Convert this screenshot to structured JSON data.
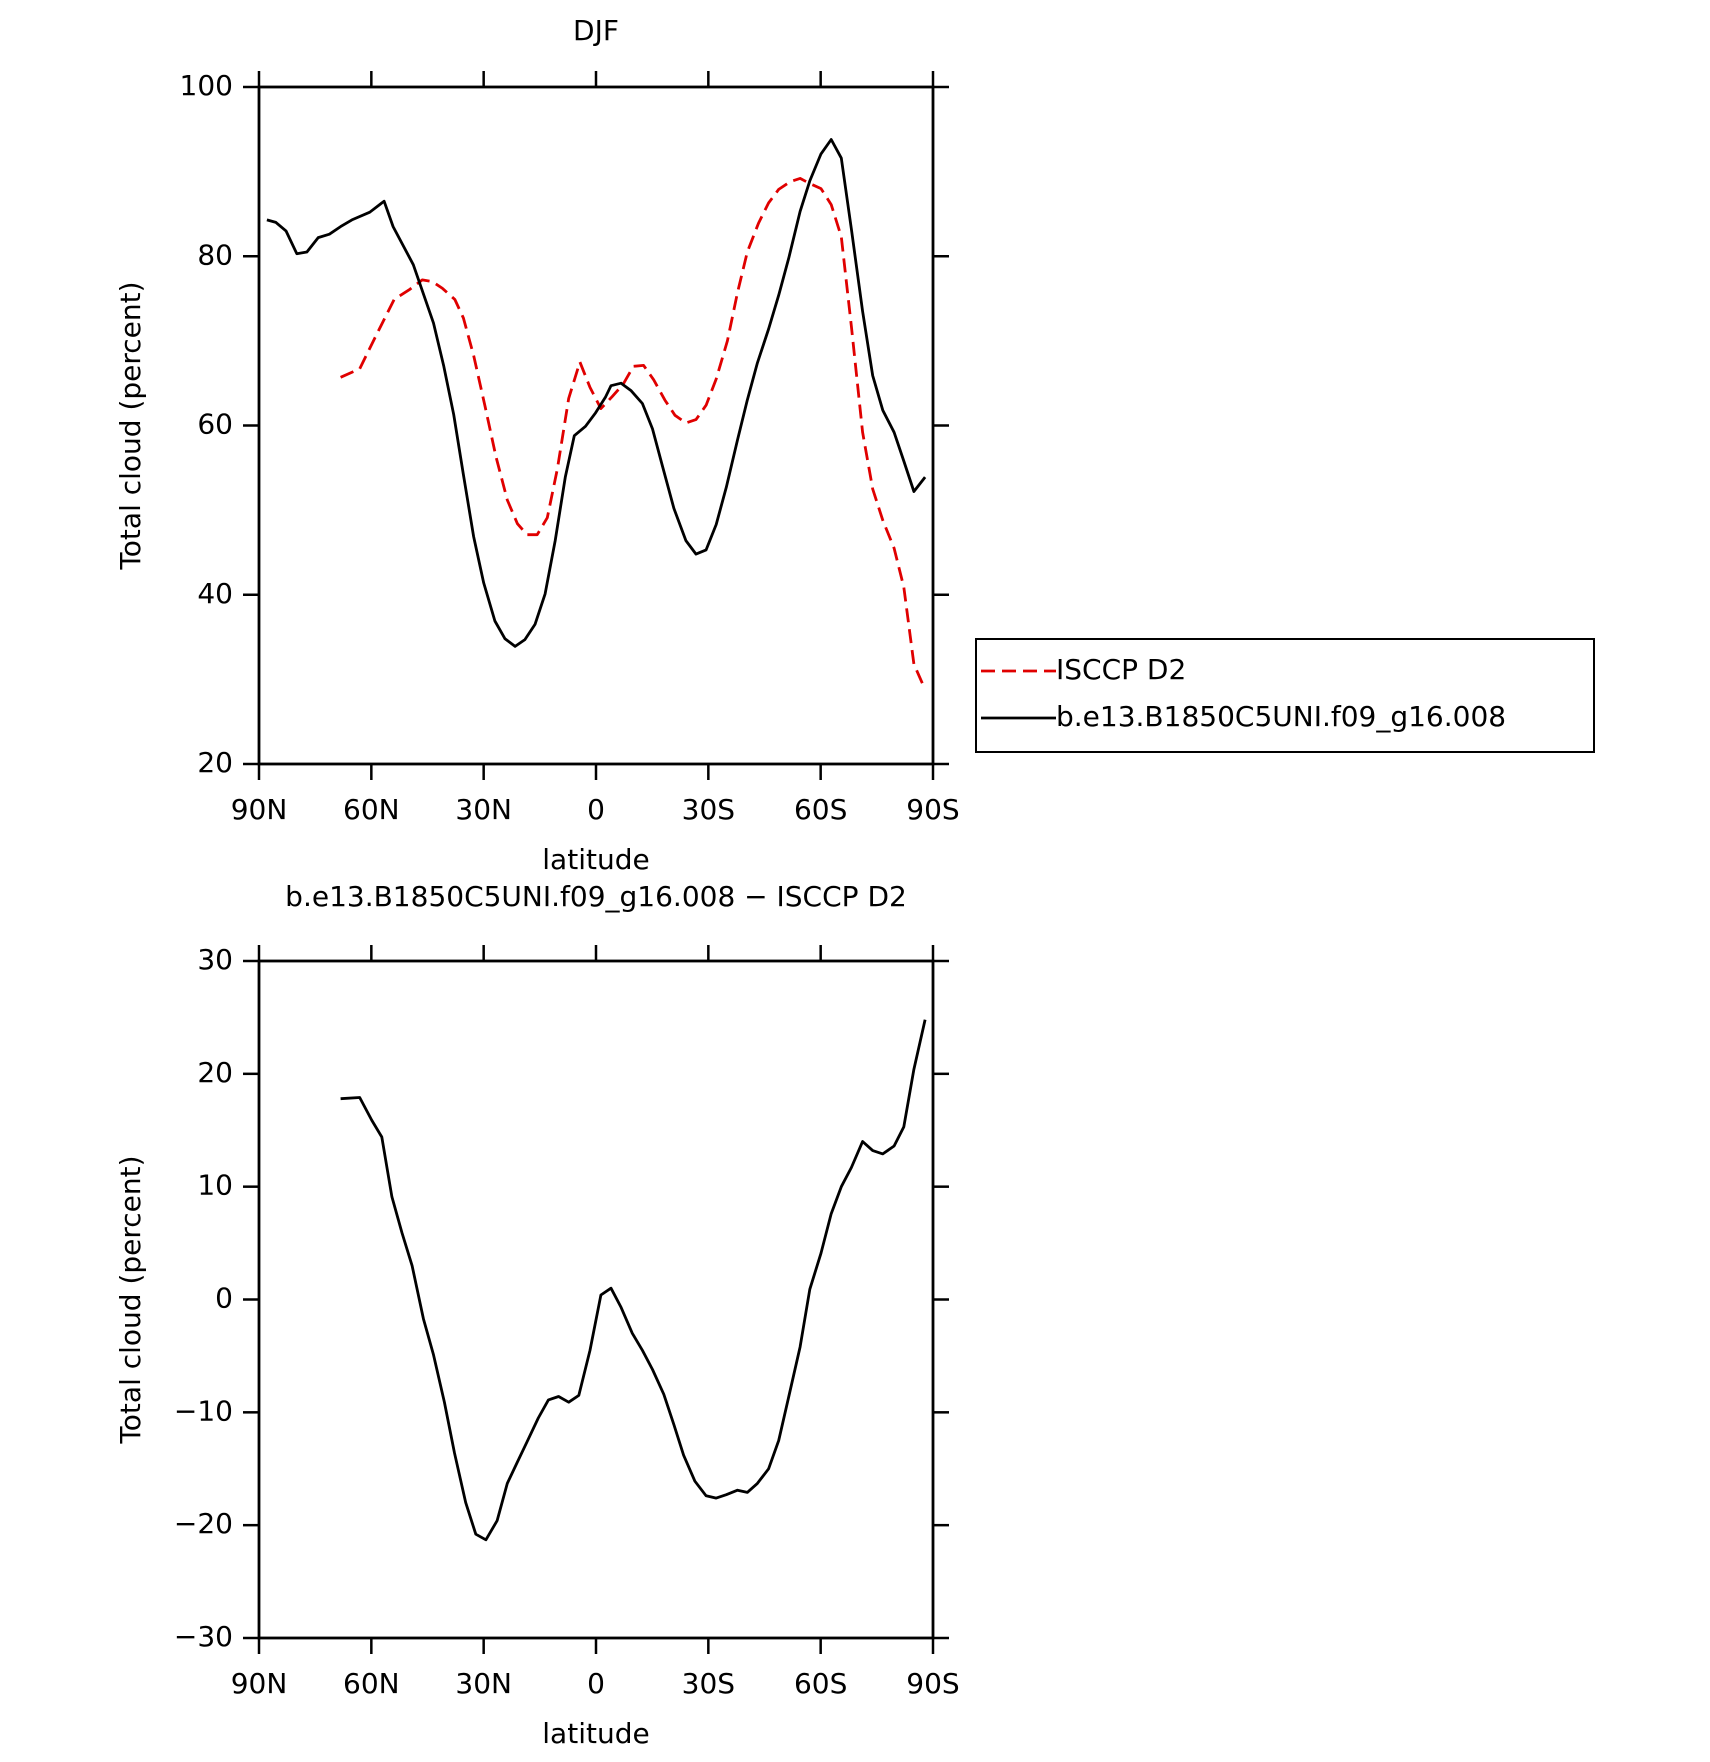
{
  "chart_data": [
    {
      "type": "line",
      "title": "DJF",
      "y_label": "Total cloud (percent)",
      "x_label": "latitude",
      "xlim": [
        90,
        -90
      ],
      "xticks": [
        {
          "value": 90,
          "label": "90N"
        },
        {
          "value": 60,
          "label": "60N"
        },
        {
          "value": 30,
          "label": "30N"
        },
        0,
        {
          "value": -30,
          "label": "30S"
        },
        {
          "value": -60,
          "label": "60S"
        },
        {
          "value": -90,
          "label": "90S"
        }
      ],
      "ylim": [
        20,
        100
      ],
      "yticks": [
        20,
        40,
        60,
        80,
        100
      ],
      "legend": "right",
      "series": [
        {
          "name": "ISCCP D2",
          "color": "#e00000",
          "dashed": true,
          "x": [
            68.2,
            63.1,
            59.0,
            53.9,
            49.7,
            46.4,
            43.7,
            41.0,
            37.7,
            35.4,
            32.7,
            29.7,
            26.7,
            23.7,
            21.0,
            18.4,
            15.7,
            13.0,
            10.3,
            7.3,
            4.3,
            1.6,
            -1.3,
            -4.3,
            -7.3,
            -10.0,
            -12.7,
            -15.4,
            -18.4,
            -21.1,
            -24.0,
            -26.7,
            -29.4,
            -32.1,
            -35.1,
            -37.8,
            -40.4,
            -43.4,
            -46.1,
            -48.8,
            -51.8,
            -54.5,
            -57.1,
            -60.1,
            -62.8,
            -65.5,
            -68.2,
            -71.2,
            -73.9,
            -76.6,
            -79.6,
            -82.2,
            -84.9,
            -87.9
          ],
          "values": [
            65.7,
            66.7,
            70.4,
            74.9,
            76.1,
            77.2,
            77.0,
            76.2,
            74.9,
            72.7,
            68.3,
            62.4,
            56.3,
            51.2,
            48.4,
            47.1,
            47.1,
            49.1,
            54.9,
            63.2,
            67.5,
            64.5,
            62.0,
            63.4,
            64.9,
            67.0,
            67.1,
            65.4,
            63.0,
            61.2,
            60.3,
            60.7,
            62.4,
            65.5,
            70.0,
            75.7,
            80.5,
            83.9,
            86.3,
            87.9,
            88.8,
            89.2,
            88.6,
            88.0,
            86.1,
            82.3,
            71.7,
            59.2,
            52.5,
            48.8,
            45.5,
            40.9,
            31.8,
            28.8
          ]
        },
        {
          "name": "b.e13.B1850C5UNI.f09_g16.008",
          "color": "#000000",
          "dashed": false,
          "x": [
            87.9,
            85.5,
            82.8,
            79.9,
            77.2,
            74.2,
            71.2,
            68.2,
            65.2,
            60.4,
            56.6,
            54.2,
            48.8,
            43.4,
            40.7,
            38.0,
            35.4,
            32.7,
            30.0,
            27.0,
            24.3,
            21.6,
            19.0,
            16.3,
            13.6,
            10.9,
            8.2,
            5.8,
            2.8,
            0.1,
            -2.6,
            -4.0,
            -6.7,
            -9.4,
            -12.4,
            -15.1,
            -17.8,
            -20.8,
            -24.0,
            -26.7,
            -29.4,
            -32.1,
            -34.8,
            -37.8,
            -40.4,
            -43.1,
            -46.1,
            -48.8,
            -51.5,
            -54.5,
            -57.1,
            -60.1,
            -62.8,
            -65.5,
            -68.2,
            -71.2,
            -73.9,
            -76.6,
            -79.6,
            -82.2,
            -84.9,
            -87.9
          ],
          "values": [
            84.3,
            84.0,
            83.0,
            80.3,
            80.5,
            82.2,
            82.6,
            83.5,
            84.3,
            85.2,
            86.5,
            83.5,
            79.0,
            72.1,
            67.1,
            61.3,
            54.2,
            46.9,
            41.4,
            36.9,
            34.8,
            33.9,
            34.7,
            36.5,
            40.1,
            46.4,
            53.9,
            58.8,
            59.9,
            61.5,
            63.4,
            64.7,
            65.0,
            64.1,
            62.6,
            59.6,
            55.1,
            50.2,
            46.4,
            44.8,
            45.3,
            48.3,
            52.7,
            58.3,
            63.0,
            67.4,
            71.4,
            75.4,
            79.8,
            85.3,
            88.9,
            92.1,
            93.8,
            91.6,
            83.2,
            73.5,
            65.9,
            61.8,
            59.2,
            55.8,
            52.2,
            53.9
          ]
        }
      ]
    },
    {
      "type": "line",
      "title": "b.e13.B1850C5UNI.f09_g16.008 − ISCCP D2",
      "y_label": "Total cloud (percent)",
      "x_label": "latitude",
      "xlim": [
        90,
        -90
      ],
      "xticks": [
        {
          "value": 90,
          "label": "90N"
        },
        {
          "value": 60,
          "label": "60N"
        },
        {
          "value": 30,
          "label": "30N"
        },
        0,
        {
          "value": -30,
          "label": "30S"
        },
        {
          "value": -60,
          "label": "60S"
        },
        {
          "value": -90,
          "label": "90S"
        }
      ],
      "ylim": [
        -30,
        30
      ],
      "yticks": [
        {
          "value": -30,
          "label": "−30"
        },
        {
          "value": -20,
          "label": "−20"
        },
        {
          "value": -10,
          "label": "−10"
        },
        0,
        10,
        20,
        30
      ],
      "series": [
        {
          "color": "#000000",
          "dashed": false,
          "x": [
            68.2,
            63.1,
            59.9,
            57.2,
            54.5,
            51.8,
            49.1,
            46.1,
            43.4,
            40.5,
            37.8,
            34.8,
            32.1,
            29.4,
            26.4,
            23.7,
            21.0,
            18.4,
            15.4,
            12.7,
            10.0,
            7.3,
            4.6,
            1.6,
            -1.3,
            -4.0,
            -6.7,
            -9.7,
            -12.4,
            -15.1,
            -18.1,
            -20.8,
            -23.4,
            -26.4,
            -29.4,
            -32.1,
            -34.8,
            -37.8,
            -40.4,
            -43.1,
            -46.1,
            -48.8,
            -51.5,
            -54.5,
            -57.1,
            -60.1,
            -62.8,
            -65.5,
            -68.2,
            -71.2,
            -73.9,
            -76.6,
            -79.6,
            -82.2,
            -84.9,
            -87.9
          ],
          "values": [
            17.8,
            17.9,
            15.9,
            14.4,
            9.1,
            5.9,
            3.0,
            -1.7,
            -4.9,
            -9.1,
            -13.6,
            -18.0,
            -20.8,
            -21.3,
            -19.6,
            -16.3,
            -14.4,
            -12.6,
            -10.5,
            -8.9,
            -8.6,
            -9.1,
            -8.5,
            -4.5,
            0.4,
            1.0,
            -0.7,
            -3.0,
            -4.5,
            -6.2,
            -8.4,
            -11.1,
            -13.8,
            -16.1,
            -17.4,
            -17.6,
            -17.3,
            -16.9,
            -17.1,
            -16.3,
            -15.0,
            -12.5,
            -8.6,
            -4.2,
            0.9,
            4.1,
            7.6,
            10.0,
            11.7,
            14.0,
            13.2,
            12.9,
            13.6,
            15.3,
            20.4,
            24.8
          ]
        }
      ]
    }
  ]
}
